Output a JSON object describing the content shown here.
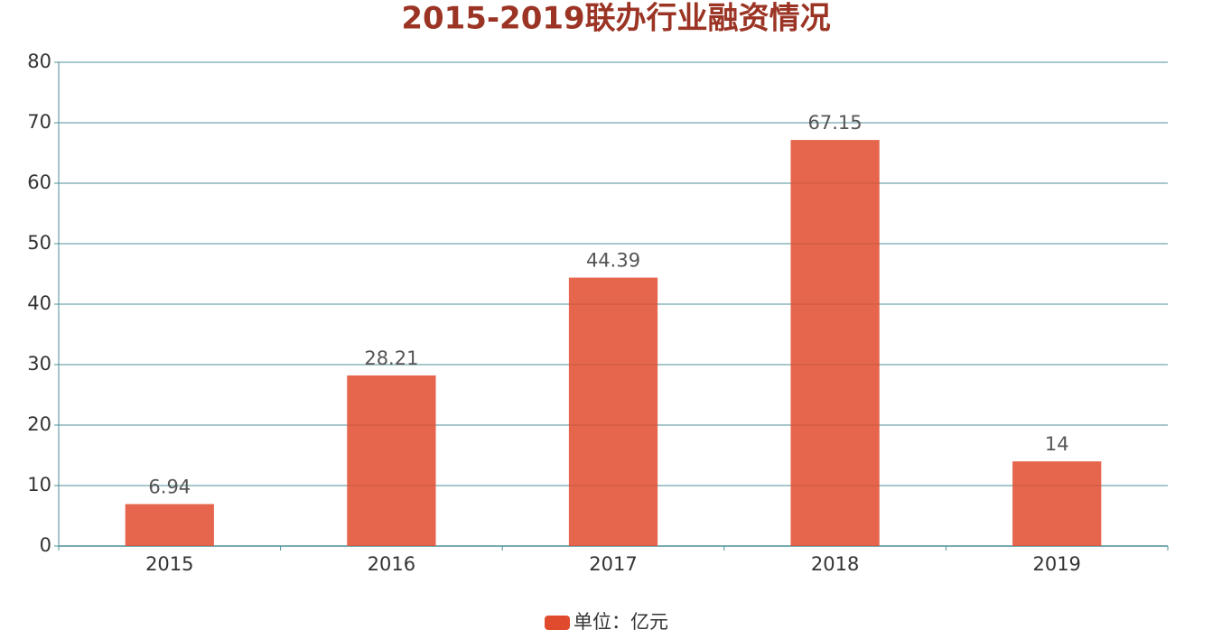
{
  "chart_data": {
    "type": "bar",
    "title": "2015-2019联办行业融资情况",
    "categories": [
      "2015",
      "2016",
      "2017",
      "2018",
      "2019"
    ],
    "series": [
      {
        "name": "单位：亿元",
        "color": "#e04b2e",
        "values": [
          6.94,
          28.21,
          44.39,
          67.15,
          14
        ]
      }
    ],
    "ylim": [
      0,
      80
    ],
    "yticks": [
      0,
      10,
      20,
      30,
      40,
      50,
      60,
      70,
      80
    ],
    "grid": true
  }
}
